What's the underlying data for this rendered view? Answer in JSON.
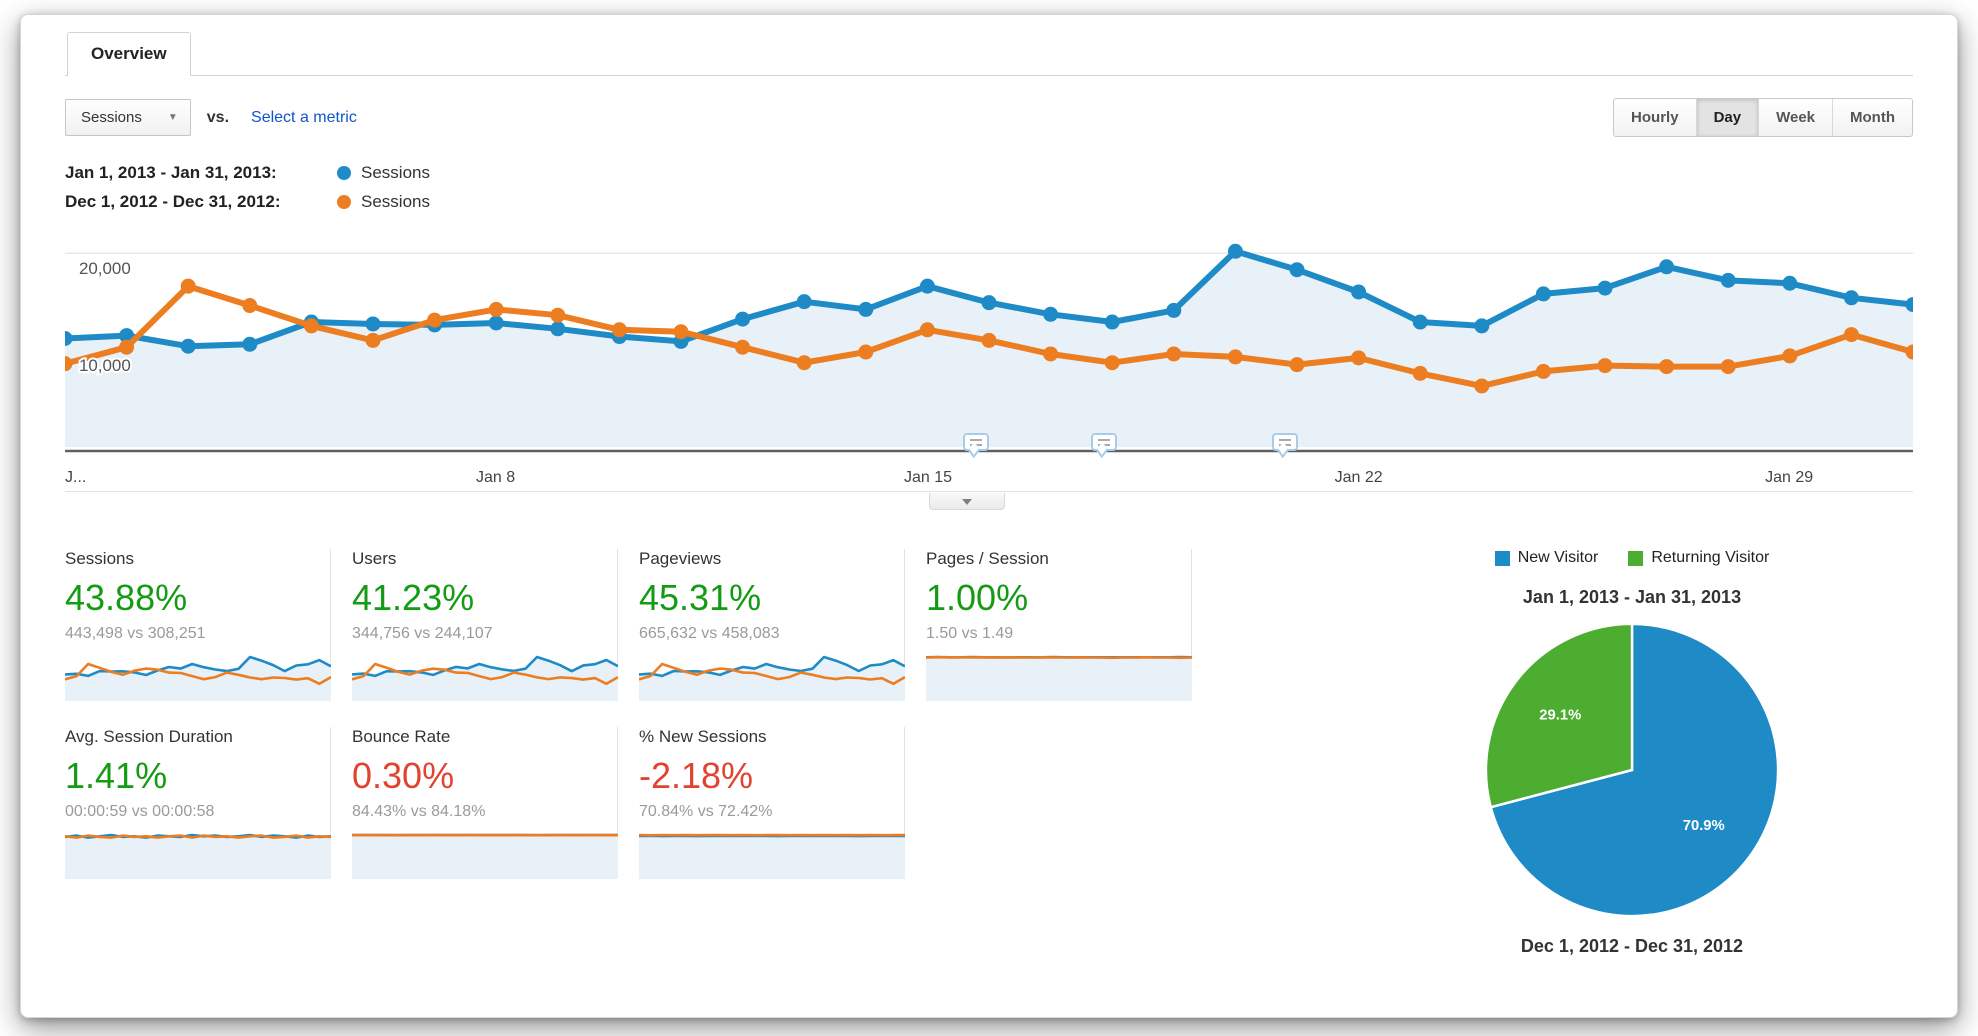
{
  "tab": {
    "label": "Overview"
  },
  "toolbar": {
    "metric_selector": "Sessions",
    "vs_label": "vs.",
    "select_metric_label": "Select a metric",
    "granularity": [
      {
        "label": "Hourly",
        "active": false
      },
      {
        "label": "Day",
        "active": true
      },
      {
        "label": "Week",
        "active": false
      },
      {
        "label": "Month",
        "active": false
      }
    ]
  },
  "colors": {
    "current_series": "#1e8bc7",
    "previous_series": "#ec7d21",
    "area_fill": "#e8f1f8",
    "gridline": "#e8e8e8",
    "axis_line": "#606060",
    "positive": "#149b14",
    "negative": "#e2432e",
    "returning_green": "#4cad31"
  },
  "legend": [
    {
      "range": "Jan 1, 2013 - Jan 31, 2013:",
      "series": "Sessions",
      "color": "#1e8bc7"
    },
    {
      "range": "Dec 1, 2012 - Dec 31, 2012:",
      "series": "Sessions",
      "color": "#ec7d21"
    }
  ],
  "chart_data": {
    "main_timeline": {
      "type": "line",
      "title": "Sessions by day, current vs previous period",
      "x": [
        "Jan 1",
        "Jan 2",
        "Jan 3",
        "Jan 4",
        "Jan 5",
        "Jan 6",
        "Jan 7",
        "Jan 8",
        "Jan 9",
        "Jan 10",
        "Jan 11",
        "Jan 12",
        "Jan 13",
        "Jan 14",
        "Jan 15",
        "Jan 16",
        "Jan 17",
        "Jan 18",
        "Jan 19",
        "Jan 20",
        "Jan 21",
        "Jan 22",
        "Jan 23",
        "Jan 24",
        "Jan 25",
        "Jan 26",
        "Jan 27",
        "Jan 28",
        "Jan 29",
        "Jan 30",
        "Jan 31"
      ],
      "xticks": [
        {
          "label": "J...",
          "pct": 0
        },
        {
          "label": "Jan 8",
          "pct": 23.3
        },
        {
          "label": "Jan 15",
          "pct": 46.7
        },
        {
          "label": "Jan 22",
          "pct": 70.0
        },
        {
          "label": "Jan 29",
          "pct": 93.3
        }
      ],
      "yticks": [
        {
          "label": "10,000",
          "value": 10000
        },
        {
          "label": "20,000",
          "value": 20000
        }
      ],
      "ylim": [
        0,
        22500
      ],
      "grid": true,
      "series": [
        {
          "name": "Sessions (Jan 1, 2013 - Jan 31, 2013)",
          "color": "#1e8bc7",
          "area": true,
          "values": [
            11200,
            11500,
            10400,
            10600,
            12900,
            12700,
            12600,
            12800,
            12200,
            11400,
            10900,
            13200,
            15000,
            14200,
            16600,
            14900,
            13700,
            12900,
            14100,
            20200,
            18300,
            16000,
            12900,
            12500,
            15800,
            16400,
            18600,
            17200,
            16900,
            15400,
            14700
          ]
        },
        {
          "name": "Sessions (Dec 1, 2012 - Dec 31, 2012)",
          "color": "#ec7d21",
          "area": false,
          "values": [
            8600,
            10300,
            16600,
            14600,
            12500,
            11000,
            13100,
            14200,
            13600,
            12100,
            11900,
            10300,
            8700,
            9800,
            12100,
            11000,
            9600,
            8700,
            9600,
            9300,
            8500,
            9200,
            7600,
            6300,
            7800,
            8400,
            8300,
            8300,
            9400,
            11600,
            9800
          ]
        }
      ],
      "annotation_marker_pcts": [
        49.3,
        56.2,
        66.0
      ]
    },
    "sparklines": {
      "sessions": {
        "current": [
          11.2,
          11.5,
          10.4,
          12.9,
          12.7,
          12.8,
          12.2,
          10.9,
          13.2,
          15.0,
          14.2,
          16.6,
          14.9,
          13.7,
          12.9,
          14.1,
          20.2,
          18.3,
          16.0,
          12.9,
          15.8,
          16.4,
          18.6,
          15.4
        ],
        "previous": [
          8.6,
          10.3,
          16.6,
          14.6,
          12.5,
          11.0,
          13.1,
          14.2,
          13.6,
          12.1,
          11.9,
          10.3,
          8.7,
          9.8,
          12.1,
          11.0,
          9.6,
          8.7,
          9.6,
          9.3,
          8.5,
          9.2,
          6.3,
          9.8
        ]
      },
      "users": {
        "current": [
          8.7,
          9.0,
          8.1,
          10.0,
          9.9,
          10.0,
          9.5,
          8.5,
          10.3,
          11.7,
          11.1,
          12.9,
          11.6,
          10.7,
          10.1,
          11.0,
          15.7,
          14.2,
          12.4,
          10.0,
          12.3,
          12.8,
          14.5,
          12.0
        ],
        "previous": [
          6.7,
          8.0,
          12.9,
          11.4,
          9.7,
          8.6,
          10.2,
          11.0,
          10.6,
          9.4,
          9.3,
          8.0,
          6.8,
          7.6,
          9.4,
          8.6,
          7.5,
          6.8,
          7.5,
          7.2,
          6.6,
          7.2,
          4.9,
          7.6
        ]
      },
      "pageviews": {
        "current": [
          16.8,
          17.3,
          15.6,
          19.4,
          19.1,
          19.2,
          18.3,
          16.4,
          19.8,
          22.5,
          21.3,
          24.9,
          22.4,
          20.6,
          19.4,
          21.2,
          30.3,
          27.5,
          24.0,
          19.4,
          23.7,
          24.6,
          27.9,
          23.1
        ],
        "previous": [
          12.9,
          15.5,
          24.9,
          21.9,
          18.8,
          16.5,
          19.7,
          21.3,
          20.4,
          18.2,
          17.9,
          15.5,
          13.1,
          14.7,
          18.2,
          16.5,
          14.4,
          13.1,
          14.4,
          14.0,
          12.8,
          13.8,
          9.5,
          14.7
        ]
      },
      "pages_session": {
        "current": [
          1.5,
          1.51,
          1.5,
          1.5,
          1.51,
          1.5,
          1.5,
          1.49,
          1.5,
          1.5,
          1.5,
          1.51,
          1.5,
          1.5,
          1.5,
          1.5,
          1.5,
          1.5,
          1.5,
          1.5,
          1.5,
          1.5,
          1.51,
          1.5
        ],
        "previous": [
          1.49,
          1.5,
          1.5,
          1.5,
          1.49,
          1.5,
          1.49,
          1.5,
          1.49,
          1.49,
          1.5,
          1.49,
          1.49,
          1.5,
          1.49,
          1.49,
          1.48,
          1.49,
          1.49,
          1.5,
          1.49,
          1.49,
          1.48,
          1.49
        ]
      },
      "avg_duration": {
        "current": [
          58,
          60,
          57,
          59,
          61,
          58,
          59,
          57,
          60,
          59,
          58,
          61,
          59,
          60,
          58,
          59,
          61,
          58,
          60,
          59,
          57,
          60,
          58,
          59
        ],
        "previous": [
          59,
          57,
          60,
          58,
          57,
          60,
          58,
          59,
          57,
          59,
          60,
          57,
          60,
          58,
          59,
          57,
          59,
          60,
          57,
          58,
          60,
          57,
          59,
          58
        ]
      },
      "bounce": {
        "current": [
          84.5,
          84.3,
          84.6,
          84.4,
          84.2,
          84.5,
          84.4,
          84.3,
          84.5,
          84.4,
          84.3,
          84.6,
          84.4,
          84.5,
          84.3,
          84.4,
          84.2,
          84.5,
          84.4,
          84.3,
          84.5,
          84.4,
          84.3,
          84.4
        ],
        "previous": [
          84.2,
          84.3,
          84.1,
          84.2,
          84.3,
          84.1,
          84.2,
          84.3,
          84.2,
          84.1,
          84.3,
          84.2,
          84.1,
          84.2,
          84.3,
          84.2,
          84.1,
          84.2,
          84.3,
          84.1,
          84.2,
          84.3,
          84.2,
          84.2
        ]
      },
      "new_sessions": {
        "current": [
          70.8,
          71.2,
          70.5,
          70.9,
          71.0,
          70.6,
          70.8,
          71.1,
          70.7,
          70.9,
          70.8,
          71.0,
          70.6,
          70.9,
          71.1,
          70.7,
          70.8,
          70.9,
          71.0,
          70.6,
          70.8,
          71.0,
          70.7,
          70.9
        ],
        "previous": [
          72.4,
          72.1,
          72.6,
          72.3,
          72.5,
          72.2,
          72.4,
          72.5,
          72.2,
          72.4,
          72.3,
          72.5,
          72.4,
          72.2,
          72.5,
          72.3,
          72.4,
          72.2,
          72.5,
          72.3,
          72.4,
          72.2,
          72.5,
          72.4
        ]
      }
    },
    "visitors_pie": {
      "type": "pie",
      "title": "New vs Returning Visitors",
      "slices": [
        {
          "label": "New Visitor",
          "value": 70.9,
          "text": "70.9%",
          "color": "#1e8bc7"
        },
        {
          "label": "Returning Visitor",
          "value": 29.1,
          "text": "29.1%",
          "color": "#4cad31"
        }
      ]
    }
  },
  "metrics": {
    "row1": [
      {
        "title": "Sessions",
        "change": "43.88%",
        "direction": "up",
        "compare": "443,498 vs 308,251",
        "spark_key": "sessions"
      },
      {
        "title": "Users",
        "change": "41.23%",
        "direction": "up",
        "compare": "344,756 vs 244,107",
        "spark_key": "users"
      },
      {
        "title": "Pageviews",
        "change": "45.31%",
        "direction": "up",
        "compare": "665,632 vs 458,083",
        "spark_key": "pageviews"
      },
      {
        "title": "Pages / Session",
        "change": "1.00%",
        "direction": "up",
        "compare": "1.50 vs 1.49",
        "spark_key": "pages_session"
      }
    ],
    "row2": [
      {
        "title": "Avg. Session Duration",
        "change": "1.41%",
        "direction": "up",
        "compare": "00:00:59 vs 00:00:58",
        "spark_key": "avg_duration"
      },
      {
        "title": "Bounce Rate",
        "change": "0.30%",
        "direction": "down",
        "compare": "84.43% vs 84.18%",
        "spark_key": "bounce"
      },
      {
        "title": "% New Sessions",
        "change": "-2.18%",
        "direction": "down",
        "compare": "70.84% vs 72.42%",
        "spark_key": "new_sessions"
      }
    ]
  },
  "visitors": {
    "legend": [
      {
        "label": "New Visitor",
        "color": "#1e8bc7"
      },
      {
        "label": "Returning Visitor",
        "color": "#4cad31"
      }
    ],
    "title_top": "Jan 1, 2013 - Jan 31, 2013",
    "title_bottom": "Dec 1, 2012 - Dec 31, 2012"
  }
}
